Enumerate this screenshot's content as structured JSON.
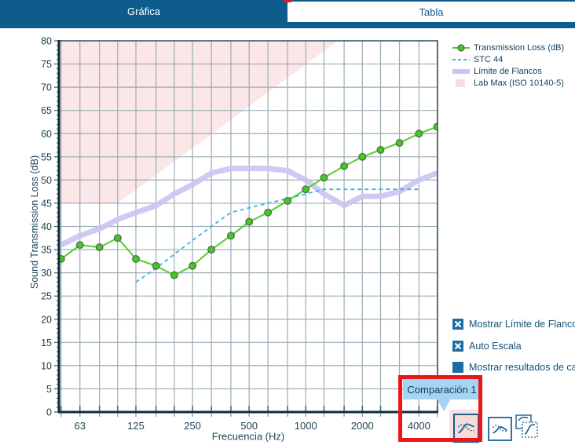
{
  "tabs": [
    {
      "label": "Gráfica",
      "selected": true
    },
    {
      "label": "Tabla",
      "selected": false
    }
  ],
  "chart_data": {
    "type": "line",
    "xlabel": "Frecuencia (Hz)",
    "ylabel": "Sound Transmission Loss (dB)",
    "x_scale": "log",
    "xmin": 48.7,
    "xmax": 5021,
    "ylim": [
      0,
      80
    ],
    "y_tick_step": 5,
    "x_bands": [
      50,
      63,
      80,
      100,
      125,
      160,
      200,
      250,
      315,
      400,
      500,
      630,
      800,
      1000,
      1250,
      1600,
      2000,
      2500,
      3150,
      4000,
      5000
    ],
    "x_octaves": [
      63,
      125,
      250,
      500,
      1000,
      2000,
      4000
    ],
    "x_octave_labels": [
      "63",
      "125",
      "250",
      "500",
      "1000",
      "2000",
      "4000"
    ],
    "grid": true,
    "legend_position": "top-right",
    "series": [
      {
        "name": "Transmission Loss (dB)",
        "type": "line-markers",
        "color": "#52ce28",
        "marker_fill": "#3ecd1f",
        "marker_stroke": "#586558",
        "x": [
          50,
          63,
          80,
          100,
          125,
          160,
          200,
          250,
          315,
          400,
          500,
          630,
          800,
          1000,
          1250,
          1600,
          2000,
          2500,
          3150,
          4000,
          5000
        ],
        "values": [
          33,
          36,
          35.5,
          37.5,
          33,
          31.5,
          29.5,
          31.5,
          35,
          38,
          41,
          43,
          45.5,
          48,
          50.5,
          53,
          55,
          56.5,
          58,
          60,
          61.5
        ]
      },
      {
        "name": "STC 44",
        "type": "dashed-line",
        "color": "#3bb4e9",
        "x": [
          125,
          160,
          200,
          250,
          315,
          400,
          500,
          630,
          800,
          1000,
          1250,
          1600,
          2000,
          2500,
          3150,
          4000
        ],
        "values": [
          28,
          31,
          34,
          37,
          40,
          43,
          44,
          45,
          46,
          47,
          48,
          48,
          48,
          48,
          48,
          48
        ]
      },
      {
        "name": "Límite de Flancos",
        "type": "thick-line",
        "color": "#cbc4f2",
        "x": [
          50,
          63,
          80,
          100,
          125,
          160,
          200,
          250,
          315,
          400,
          500,
          630,
          800,
          1000,
          1250,
          1600,
          2000,
          2500,
          3150,
          4000,
          5000
        ],
        "values": [
          36,
          38,
          39.5,
          41.5,
          43,
          44.5,
          47,
          49,
          51.5,
          52.5,
          52.5,
          52.5,
          52,
          50,
          47,
          44.5,
          46.5,
          46.5,
          47.5,
          50,
          51.5
        ]
      },
      {
        "name": "Lab Max (ISO 10140-5)",
        "type": "area-upper-left",
        "color": "#fbe6e8",
        "x": [
          48,
          100,
          200,
          400,
          800,
          1600
        ],
        "values": [
          45,
          45,
          54,
          63,
          72,
          81
        ]
      }
    ]
  },
  "checkboxes": [
    {
      "label": "Mostrar Límite de Flancos",
      "state": "checked"
    },
    {
      "label": "Auto Escala",
      "state": "checked"
    },
    {
      "label": "Mostrar resultados de car",
      "state": "filled"
    }
  ],
  "tooltip": {
    "text": "Comparación 1"
  },
  "toolbar": {
    "buttons": [
      {
        "name": "comparison-1-chart-button",
        "state": "highlighted"
      },
      {
        "name": "comparison-2-chart-button",
        "state": "normal"
      },
      {
        "name": "copy-chart-button",
        "state": "normal"
      }
    ]
  },
  "colors": {
    "tab_blue": "#0e5c8c",
    "checkbox_blue": "#1e6ca4",
    "tooltip_bg": "#a6d4f0",
    "annotation_red": "#e9161c",
    "grid": "#9aacb4",
    "axis_dark": "#0d2b38",
    "plot_border": "#3a5a68",
    "text_dark": "#1d4355",
    "icon_blue": "#1b5e8c"
  }
}
